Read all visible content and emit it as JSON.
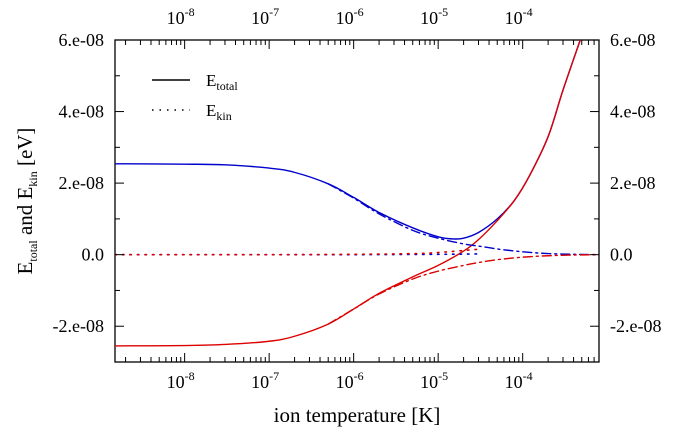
{
  "chart_data": {
    "type": "line",
    "title": "",
    "xlabel": "ion temperature [K]",
    "ylabel": {
      "parts": [
        "E",
        "total",
        " and E",
        "kin",
        " [eV]"
      ]
    },
    "xscale": "log",
    "xlim": [
      1.5e-09,
      0.0008
    ],
    "ylim": [
      -3e-08,
      6e-08
    ],
    "grid": false,
    "legend_position": "top-left",
    "x_ticks": [
      {
        "value": 1e-08,
        "base": "10",
        "exp": "-8"
      },
      {
        "value": 1e-07,
        "base": "10",
        "exp": "-7"
      },
      {
        "value": 1e-06,
        "base": "10",
        "exp": "-6"
      },
      {
        "value": 1e-05,
        "base": "10",
        "exp": "-5"
      },
      {
        "value": 0.0001,
        "base": "10",
        "exp": "-4"
      }
    ],
    "y_ticks": [
      {
        "value": -2e-08,
        "label": "-2.e-08"
      },
      {
        "value": 0,
        "label": "0.0"
      },
      {
        "value": 2e-08,
        "label": "2.e-08"
      },
      {
        "value": 4e-08,
        "label": "4.e-08"
      },
      {
        "value": 6e-08,
        "label": "6.e-08"
      }
    ],
    "legend": [
      {
        "base": "E",
        "sub": "total",
        "style": "solid",
        "color": "#000000"
      },
      {
        "base": "E",
        "sub": "kin",
        "style": "dotted",
        "color": "#000000"
      }
    ],
    "colors": {
      "blue": "#0000cc",
      "red": "#dd0000"
    },
    "series": [
      {
        "color": "#0000cc",
        "style": "solid",
        "x": [
          1.5e-09,
          1e-08,
          3e-08,
          1e-07,
          2e-07,
          5e-07,
          1e-06,
          2e-06,
          5e-06,
          1e-05,
          1.5e-05,
          2e-05,
          3e-05,
          5e-05,
          8e-05,
          0.00012,
          0.0002,
          0.0003,
          0.00048
        ],
        "y": [
          2.54e-08,
          2.53e-08,
          2.51e-08,
          2.42e-08,
          2.3e-08,
          1.98e-08,
          1.6e-08,
          1.18e-08,
          7.5e-09,
          5e-09,
          4.4e-09,
          4.6e-09,
          6.2e-09,
          1e-08,
          1.52e-08,
          2.2e-08,
          3.3e-08,
          4.6e-08,
          6e-08
        ]
      },
      {
        "color": "#dd0000",
        "style": "solid",
        "x": [
          1.5e-09,
          1e-08,
          3e-08,
          1e-07,
          2e-07,
          5e-07,
          1e-06,
          2e-06,
          5e-06,
          1e-05,
          2e-05,
          3e-05,
          5e-05,
          8e-05,
          0.00012,
          0.0002,
          0.0003,
          0.00048
        ],
        "y": [
          -2.55e-08,
          -2.54e-08,
          -2.51e-08,
          -2.42e-08,
          -2.28e-08,
          -1.94e-08,
          -1.52e-08,
          -1.08e-08,
          -6.2e-09,
          -3e-09,
          1e-09,
          4.2e-09,
          9.5e-09,
          1.52e-08,
          2.2e-08,
          3.3e-08,
          4.6e-08,
          6e-08
        ]
      },
      {
        "color": "#0000cc",
        "style": "dashdot",
        "x": [
          5e-07,
          1e-06,
          2e-06,
          5e-06,
          1e-05,
          2e-05,
          3e-05,
          5e-05,
          0.0001,
          0.0002,
          0.0004,
          0.0008
        ],
        "y": [
          1.98e-08,
          1.58e-08,
          1.14e-08,
          6.8e-09,
          4.6e-09,
          3e-09,
          2.4e-09,
          1.6e-09,
          8e-10,
          3e-10,
          1e-10,
          0.0
        ]
      },
      {
        "color": "#dd0000",
        "style": "dashdot",
        "x": [
          5e-07,
          1e-06,
          2e-06,
          5e-06,
          1e-05,
          2e-05,
          3e-05,
          5e-05,
          0.0001,
          0.0002,
          0.0004,
          0.0008
        ],
        "y": [
          -1.94e-08,
          -1.52e-08,
          -1.1e-08,
          -6.8e-09,
          -4.6e-09,
          -3e-09,
          -2.2e-09,
          -1.4e-09,
          -7e-10,
          -3e-10,
          -1e-10,
          0.0
        ]
      },
      {
        "color": "#0000cc",
        "style": "dotted",
        "x": [
          1.5e-09,
          1e-08,
          1e-07,
          1e-06,
          1e-05,
          3e-05
        ],
        "y": [
          0.0,
          0.0,
          0.0,
          0.0,
          1e-10,
          2e-10
        ]
      },
      {
        "color": "#dd0000",
        "style": "dotted",
        "x": [
          1.5e-09,
          1e-08,
          1e-07,
          1e-06,
          5e-06,
          1e-05,
          3e-05
        ],
        "y": [
          0.0,
          0.0,
          0.0,
          1e-10,
          3e-10,
          6e-10,
          1.5e-09
        ]
      }
    ]
  }
}
